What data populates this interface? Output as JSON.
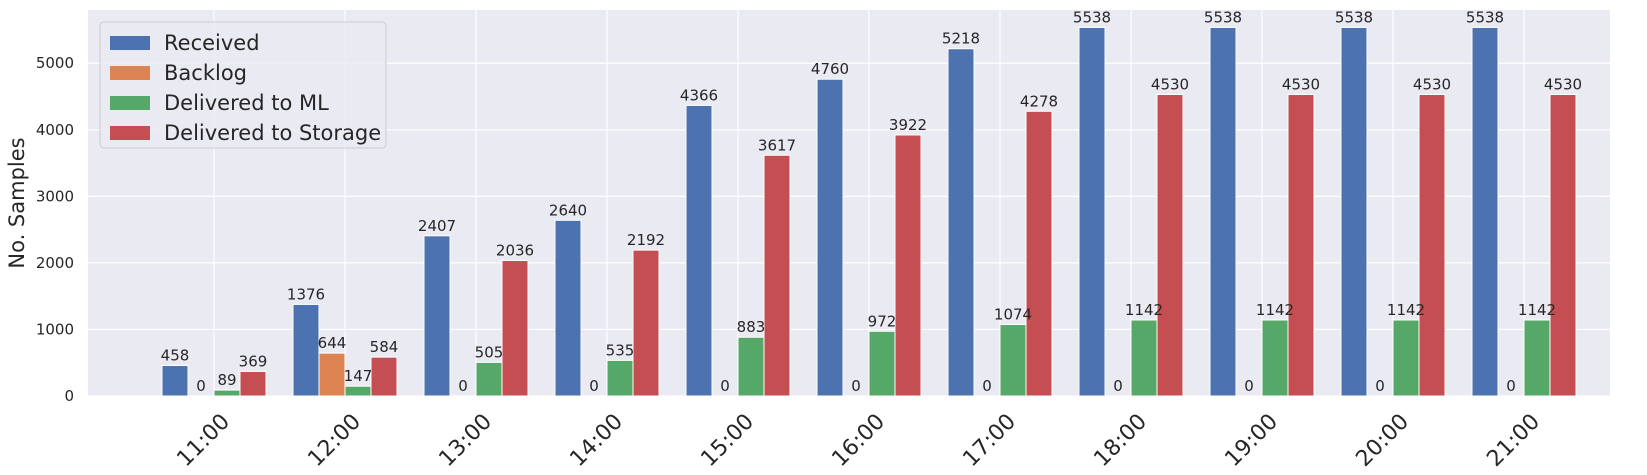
{
  "chart_data": {
    "type": "bar",
    "title": "",
    "xlabel": "",
    "ylabel": "No. Samples",
    "categories": [
      "11:00",
      "12:00",
      "13:00",
      "14:00",
      "15:00",
      "16:00",
      "17:00",
      "18:00",
      "19:00",
      "20:00",
      "21:00"
    ],
    "ylim": [
      0,
      5800
    ],
    "yticks": [
      0,
      1000,
      2000,
      3000,
      4000,
      5000
    ],
    "grid": true,
    "legend_position": "top-left",
    "series": [
      {
        "name": "Received",
        "color": "#4c72b0",
        "values": [
          458,
          1376,
          2407,
          2640,
          4366,
          4760,
          5218,
          5538,
          5538,
          5538,
          5538
        ]
      },
      {
        "name": "Backlog",
        "color": "#dd8452",
        "values": [
          0,
          644,
          0,
          0,
          0,
          0,
          0,
          0,
          0,
          0,
          0
        ]
      },
      {
        "name": "Delivered to ML",
        "color": "#55a868",
        "values": [
          89,
          147,
          505,
          535,
          883,
          972,
          1074,
          1142,
          1142,
          1142,
          1142
        ]
      },
      {
        "name": "Delivered to Storage",
        "color": "#c44e52",
        "values": [
          369,
          584,
          2036,
          2192,
          3617,
          3922,
          4278,
          4530,
          4530,
          4530,
          4530
        ]
      }
    ]
  }
}
